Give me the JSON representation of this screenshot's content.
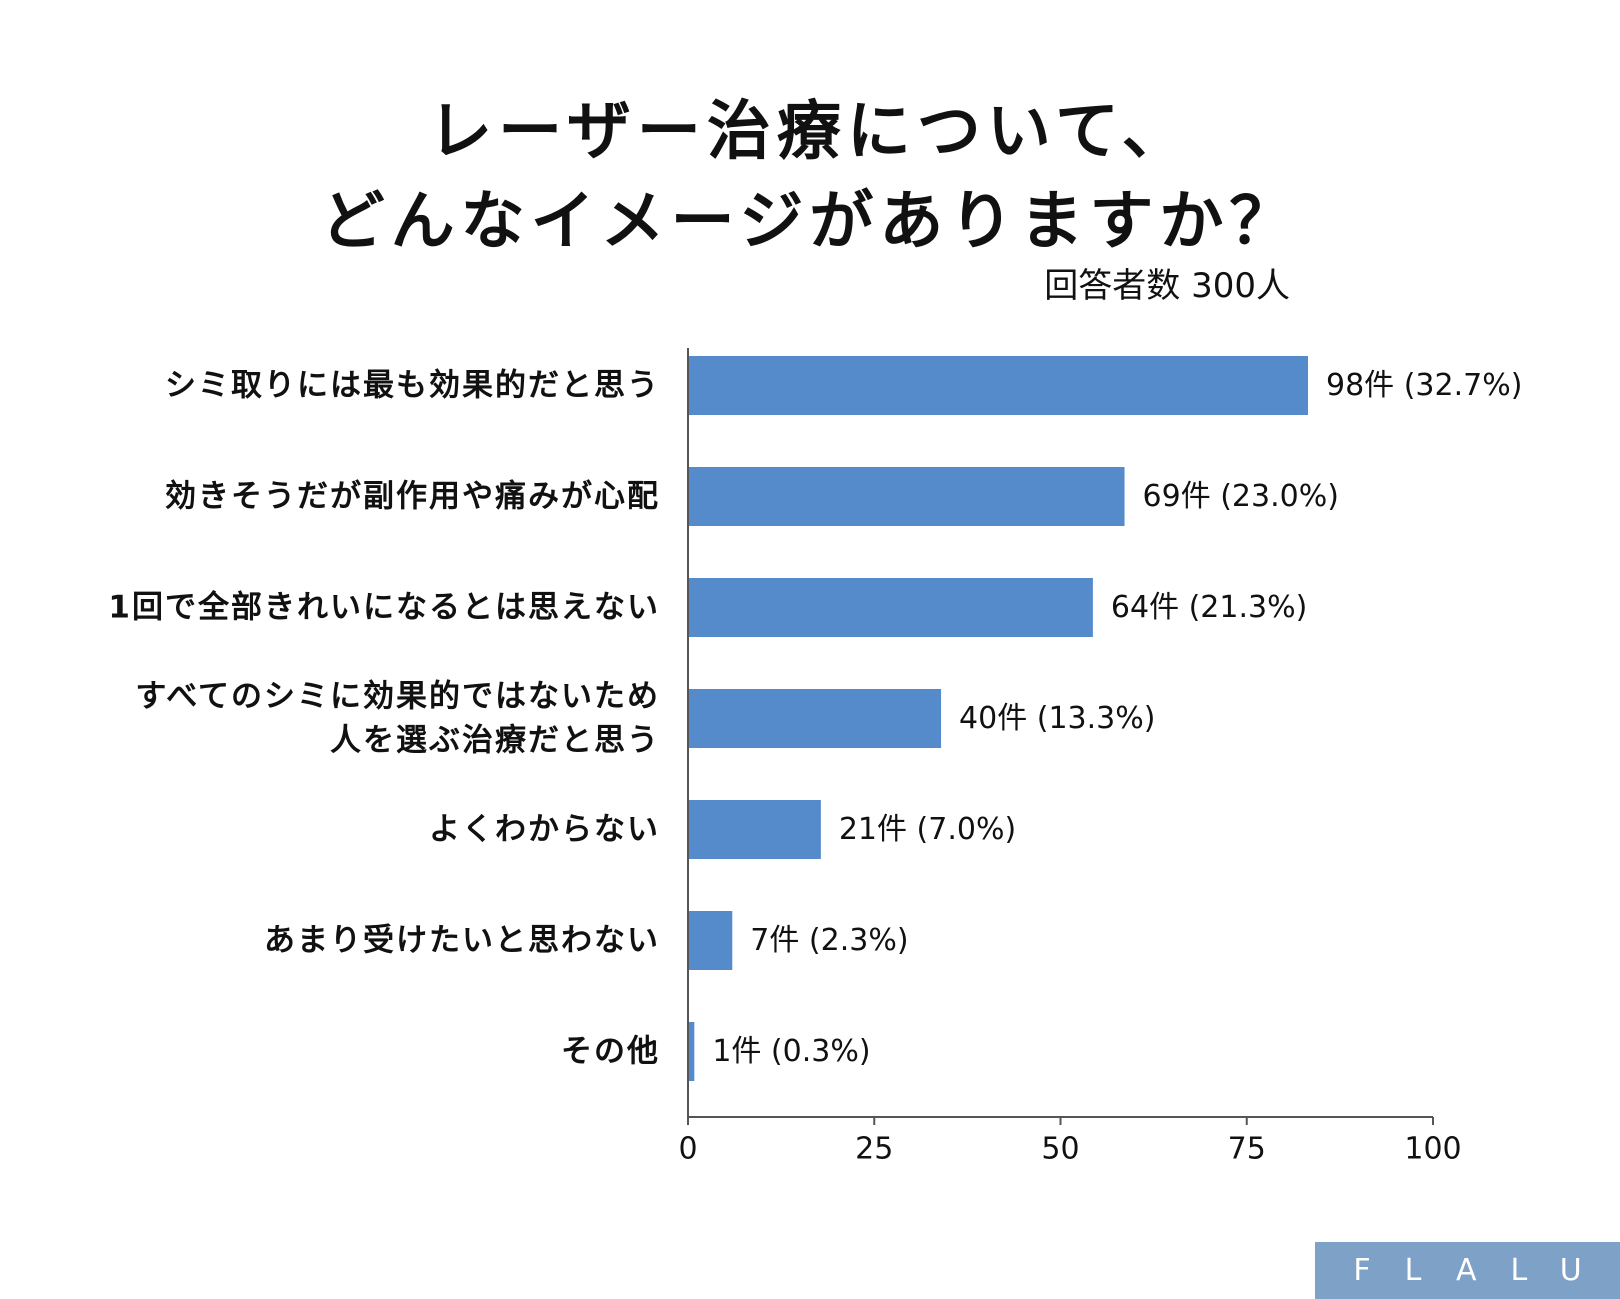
{
  "title_lines": [
    "レーザー治療について、",
    "どんなイメージがありますか？"
  ],
  "subtitle": "回答者数 300人",
  "brand": "FLALU",
  "chart_data": {
    "type": "bar",
    "orientation": "horizontal",
    "title": "レーザー治療について、どんなイメージがありますか？",
    "subtitle": "回答者数 300人",
    "categories": [
      [
        "シミ取りには最も効果的だと思う"
      ],
      [
        "効きそうだが副作用や痛みが心配"
      ],
      [
        "1回で全部きれいになるとは思えない"
      ],
      [
        "すべてのシミに効果的ではないため",
        "人を選ぶ治療だと思う"
      ],
      [
        "よくわからない"
      ],
      [
        "あまり受けたいと思わない"
      ],
      [
        "その他"
      ]
    ],
    "values": [
      98,
      69,
      64,
      40,
      21,
      7,
      1
    ],
    "data_labels": [
      "98件 (32.7%)",
      "69件 (23.0%)",
      "64件 (21.3%)",
      "40件 (13.3%)",
      "21件 (7.0%)",
      "7件 (2.3%)",
      "1件 (0.3%)"
    ],
    "xlim": [
      0,
      100
    ],
    "xticks": [
      0,
      25,
      50,
      75,
      100
    ],
    "bar_color": "#558bcb",
    "grid": false
  }
}
